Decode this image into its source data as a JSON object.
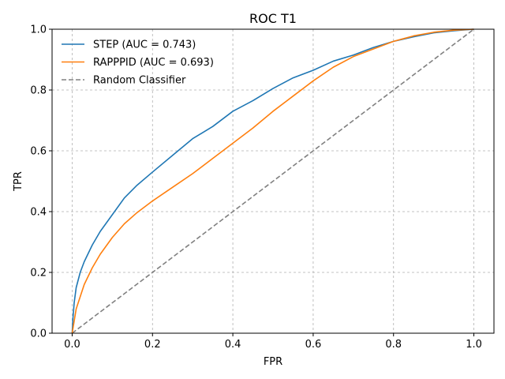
{
  "chart_data": {
    "type": "line",
    "title": "ROC T1",
    "xlabel": "FPR",
    "ylabel": "TPR",
    "xlim": [
      -0.05,
      1.05
    ],
    "ylim": [
      0.0,
      1.0
    ],
    "xticks": [
      "0.0",
      "0.2",
      "0.4",
      "0.6",
      "0.8",
      "1.0"
    ],
    "yticks": [
      "0.0",
      "0.2",
      "0.4",
      "0.6",
      "0.8",
      "1.0"
    ],
    "grid": true,
    "legend_position": "upper-left",
    "series": [
      {
        "name": "STEP (AUC = 0.743)",
        "color": "#1f77b4",
        "style": "solid",
        "x": [
          0.0,
          0.002,
          0.005,
          0.01,
          0.02,
          0.03,
          0.05,
          0.07,
          0.1,
          0.13,
          0.16,
          0.2,
          0.25,
          0.3,
          0.35,
          0.4,
          0.45,
          0.5,
          0.55,
          0.6,
          0.65,
          0.7,
          0.75,
          0.8,
          0.85,
          0.9,
          0.95,
          1.0
        ],
        "y": [
          0.0,
          0.05,
          0.1,
          0.15,
          0.2,
          0.235,
          0.29,
          0.335,
          0.39,
          0.445,
          0.485,
          0.53,
          0.585,
          0.64,
          0.68,
          0.73,
          0.765,
          0.805,
          0.84,
          0.865,
          0.895,
          0.915,
          0.94,
          0.96,
          0.975,
          0.988,
          0.995,
          1.0
        ]
      },
      {
        "name": "RAPPPID (AUC = 0.693)",
        "color": "#ff7f0e",
        "style": "solid",
        "x": [
          0.0,
          0.005,
          0.01,
          0.02,
          0.03,
          0.05,
          0.07,
          0.1,
          0.13,
          0.16,
          0.2,
          0.25,
          0.3,
          0.35,
          0.4,
          0.45,
          0.5,
          0.55,
          0.6,
          0.65,
          0.7,
          0.75,
          0.8,
          0.85,
          0.9,
          0.95,
          1.0
        ],
        "y": [
          0.0,
          0.04,
          0.08,
          0.12,
          0.16,
          0.215,
          0.26,
          0.315,
          0.36,
          0.395,
          0.435,
          0.48,
          0.525,
          0.575,
          0.625,
          0.675,
          0.73,
          0.78,
          0.83,
          0.875,
          0.91,
          0.935,
          0.96,
          0.978,
          0.99,
          0.997,
          1.0
        ]
      },
      {
        "name": "Random Classifier",
        "color": "#808080",
        "style": "dashed",
        "x": [
          0.0,
          1.0
        ],
        "y": [
          0.0,
          1.0
        ]
      }
    ]
  }
}
